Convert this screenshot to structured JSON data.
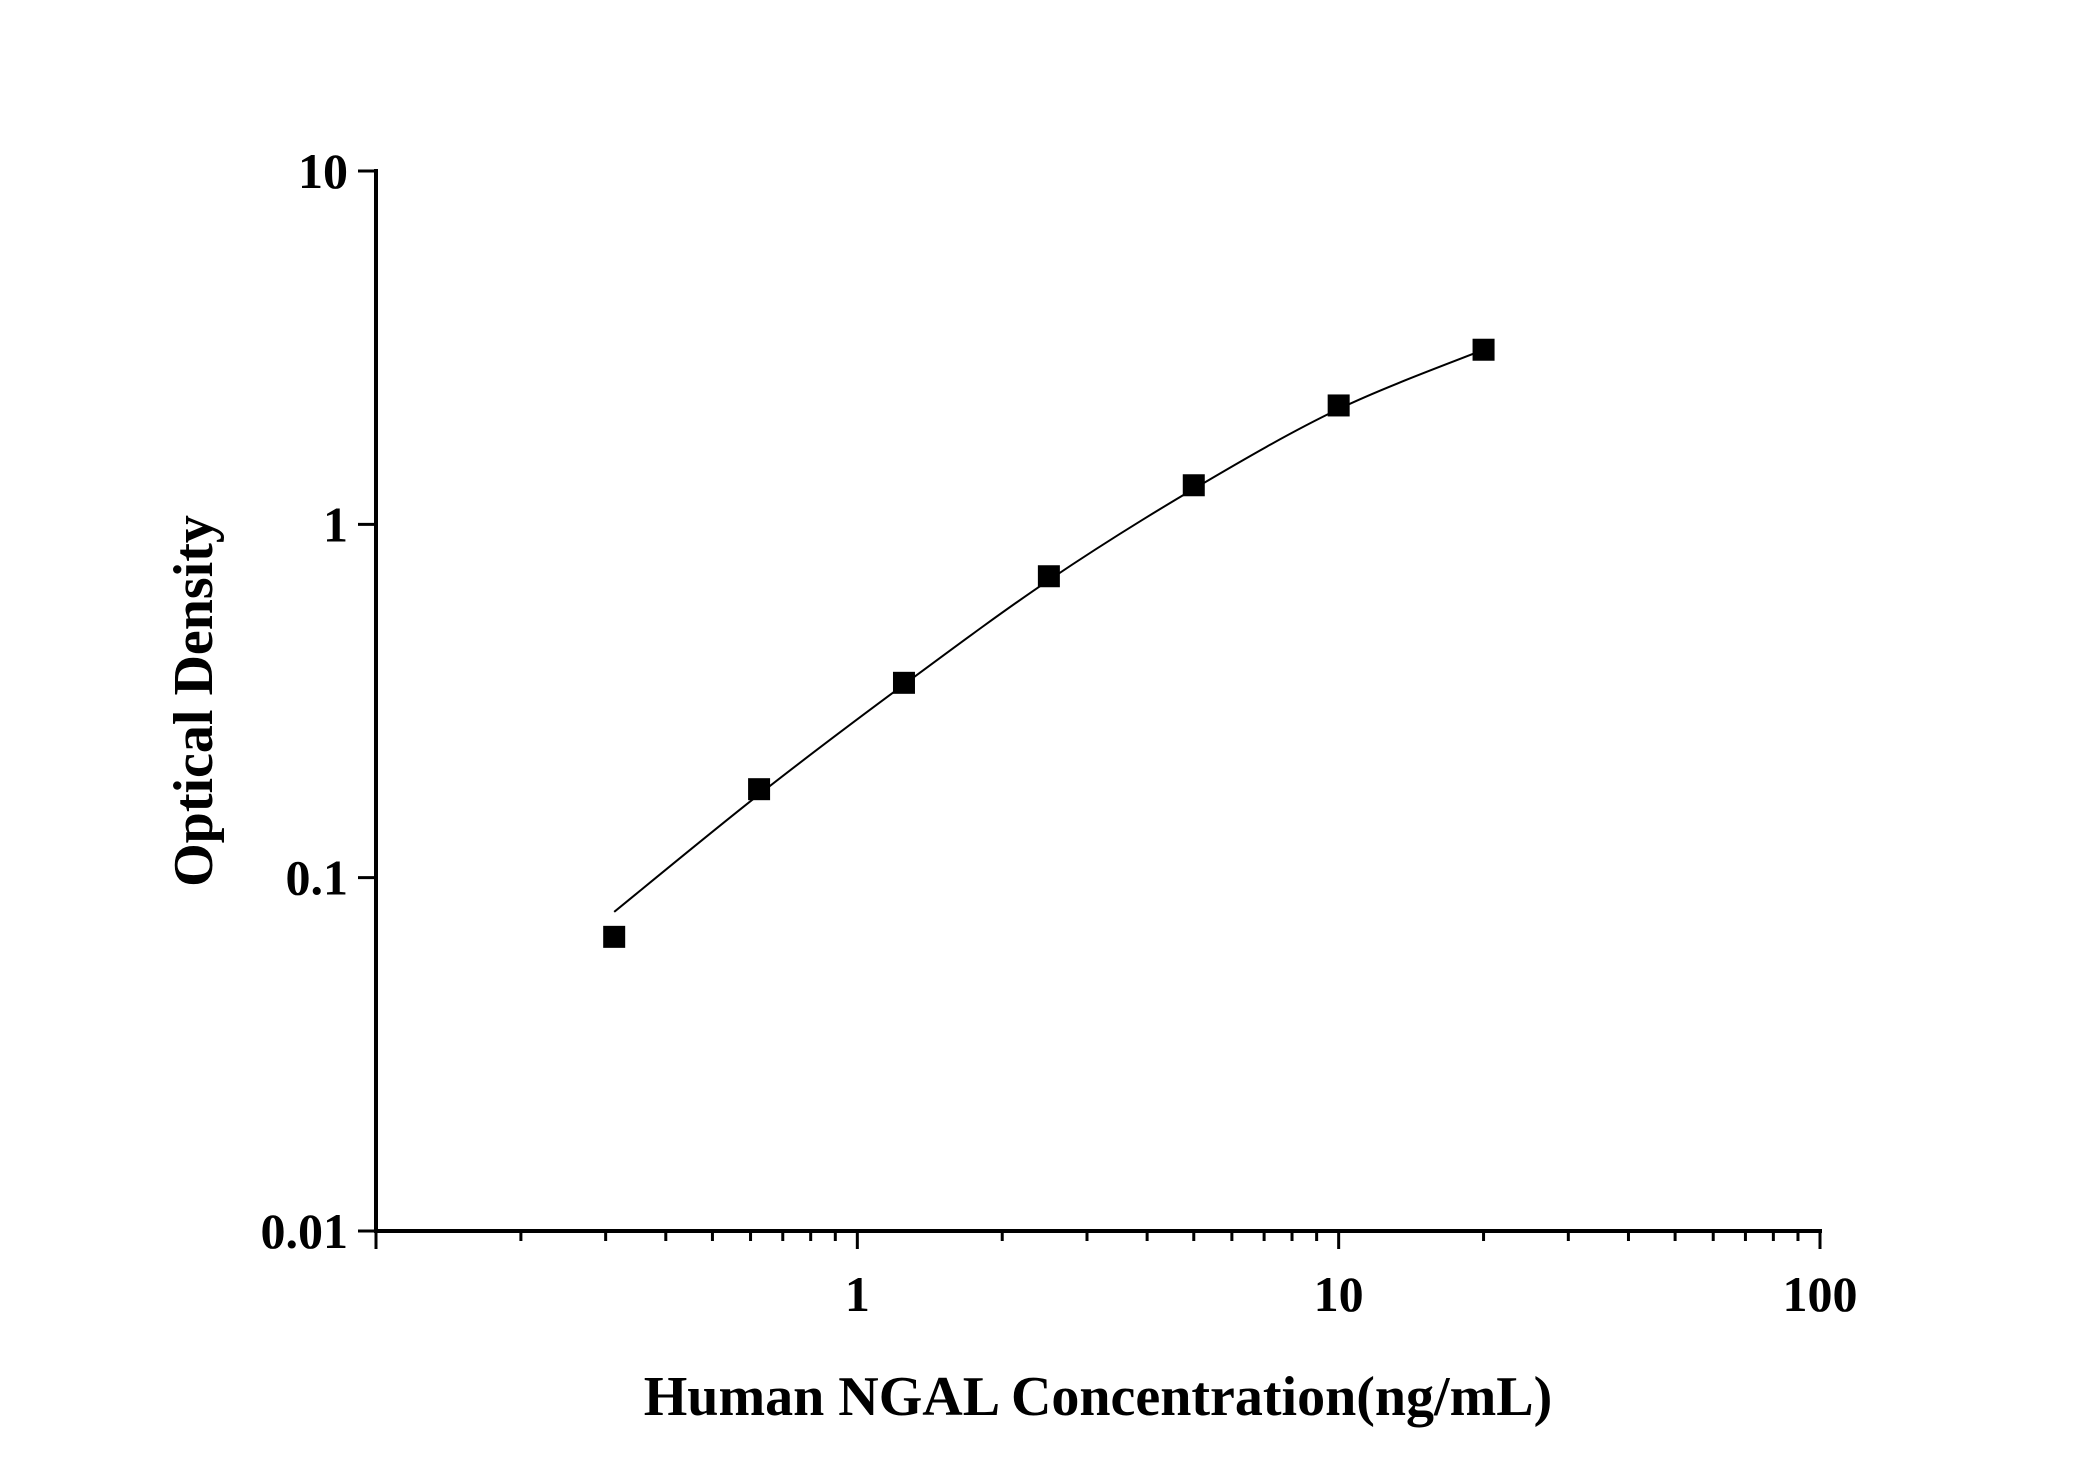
{
  "chart_data": {
    "type": "scatter",
    "title": "",
    "xlabel": "Human NGAL Concentration(ng/mL)",
    "ylabel": "Optical Density",
    "xscale": "log",
    "yscale": "log",
    "xlim": [
      0.1,
      100
    ],
    "ylim": [
      0.01,
      10
    ],
    "x_ticks": [
      {
        "value": 1,
        "label": "1"
      },
      {
        "value": 10,
        "label": "10"
      },
      {
        "value": 100,
        "label": "100"
      }
    ],
    "y_ticks": [
      {
        "value": 0.01,
        "label": "0.01"
      },
      {
        "value": 0.1,
        "label": "0.1"
      },
      {
        "value": 1,
        "label": "1"
      },
      {
        "value": 10,
        "label": "10"
      }
    ],
    "grid": false,
    "legend": "none",
    "series": [
      {
        "marker": "square",
        "x": [
          0.3125,
          0.625,
          1.25,
          2.5,
          5,
          10,
          20
        ],
        "y": [
          0.068,
          0.178,
          0.356,
          0.713,
          1.29,
          2.17,
          3.12
        ]
      }
    ],
    "fit_curve": {
      "x": [
        0.3125,
        0.625,
        1.25,
        2.5,
        5,
        10,
        20
      ],
      "y": [
        0.08,
        0.172,
        0.352,
        0.695,
        1.26,
        2.12,
        3.12
      ]
    }
  }
}
